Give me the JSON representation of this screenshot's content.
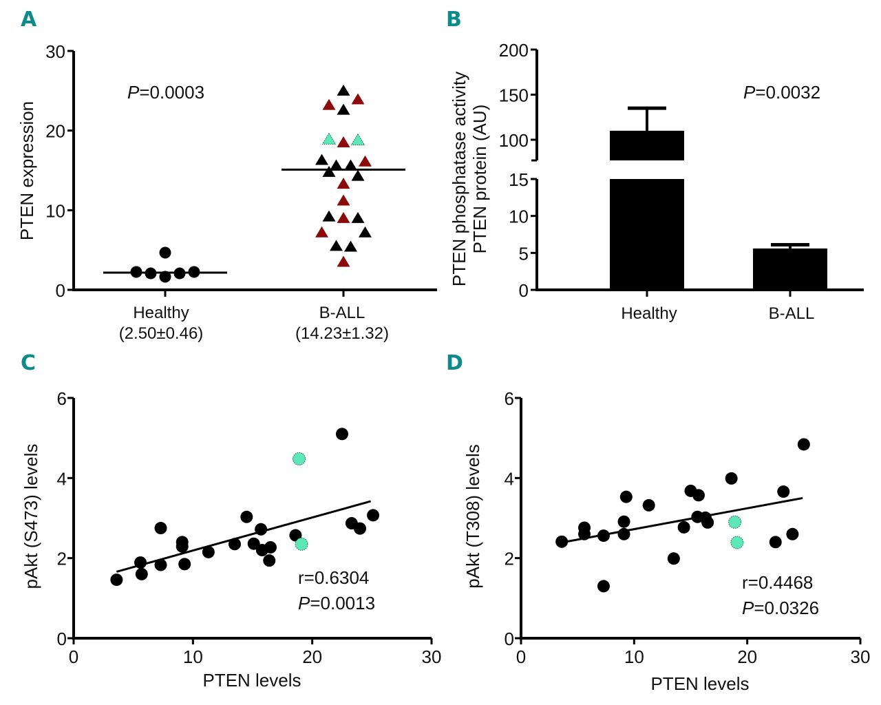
{
  "figure": {
    "panels": [
      "A",
      "B",
      "C",
      "D"
    ]
  },
  "colors": {
    "black": "#000000",
    "red": "#8b0a0a",
    "teal": "#5ee8b8",
    "label_teal": "#0e8a8a"
  },
  "chart_data": [
    {
      "panel": "A",
      "type": "scatter",
      "title": "",
      "ylabel": "PTEN expression",
      "xlabel": "",
      "ylim": [
        0,
        30
      ],
      "yticks": [
        0,
        10,
        20,
        30
      ],
      "categories": [
        "Healthy",
        "B-ALL"
      ],
      "category_sublabels": [
        "(2.50±0.46)",
        "(14.23±1.32)"
      ],
      "annotation": {
        "p_label": "P",
        "p_value": "=0.0003"
      },
      "series": [
        {
          "name": "Healthy",
          "marker": "circle",
          "median": 2.16,
          "points": [
            {
              "offset": -2,
              "y": 2.25,
              "color": "black"
            },
            {
              "offset": -1,
              "y": 2.07,
              "color": "black"
            },
            {
              "offset": 0,
              "y": 1.64,
              "color": "black"
            },
            {
              "offset": 1,
              "y": 2.07,
              "color": "black"
            },
            {
              "offset": 2,
              "y": 2.25,
              "color": "black"
            },
            {
              "offset": 0,
              "y": 4.67,
              "color": "black"
            }
          ]
        },
        {
          "name": "B-ALL",
          "marker": "triangle",
          "median": 15.1,
          "points": [
            {
              "offset": 0,
              "y": 25.0,
              "color": "black"
            },
            {
              "offset": -1,
              "y": 23.2,
              "color": "red"
            },
            {
              "offset": 1,
              "y": 23.9,
              "color": "red"
            },
            {
              "offset": 0,
              "y": 22.6,
              "color": "black"
            },
            {
              "offset": -1,
              "y": 18.9,
              "color": "teal"
            },
            {
              "offset": 0,
              "y": 18.5,
              "color": "red"
            },
            {
              "offset": 1,
              "y": 18.8,
              "color": "teal"
            },
            {
              "offset": -1.5,
              "y": 16.3,
              "color": "black"
            },
            {
              "offset": -0.5,
              "y": 15.6,
              "color": "black"
            },
            {
              "offset": 0.5,
              "y": 15.6,
              "color": "black"
            },
            {
              "offset": 1.5,
              "y": 16.1,
              "color": "red"
            },
            {
              "offset": -1,
              "y": 14.8,
              "color": "black"
            },
            {
              "offset": 1,
              "y": 14.3,
              "color": "black"
            },
            {
              "offset": 0,
              "y": 13.3,
              "color": "red"
            },
            {
              "offset": 0,
              "y": 11.2,
              "color": "red"
            },
            {
              "offset": -1,
              "y": 9.2,
              "color": "black"
            },
            {
              "offset": 0,
              "y": 9.0,
              "color": "red"
            },
            {
              "offset": 1,
              "y": 9.0,
              "color": "black"
            },
            {
              "offset": -1.5,
              "y": 7.2,
              "color": "red"
            },
            {
              "offset": 1.5,
              "y": 7.2,
              "color": "black"
            },
            {
              "offset": -0.5,
              "y": 5.5,
              "color": "black"
            },
            {
              "offset": 0.5,
              "y": 5.4,
              "color": "black"
            },
            {
              "offset": 0,
              "y": 3.5,
              "color": "red"
            }
          ]
        }
      ]
    },
    {
      "panel": "B",
      "type": "bar",
      "title": "",
      "ylabel_lines": [
        "PTEN phosphatase activity",
        "PTEN protein (AU)"
      ],
      "categories": [
        "Healthy",
        "B-ALL"
      ],
      "values": [
        110,
        5.6
      ],
      "error_upper": [
        135,
        6.1
      ],
      "axis_break": {
        "lower_range": [
          0,
          15
        ],
        "upper_range": [
          80,
          200
        ]
      },
      "yticks_lower": [
        0,
        5,
        10,
        15
      ],
      "yticks_upper": [
        100,
        150,
        200
      ],
      "annotation": {
        "p_label": "P",
        "p_value": "=0.0032"
      }
    },
    {
      "panel": "C",
      "type": "scatter",
      "title": "",
      "xlabel": "PTEN levels",
      "ylabel": "pAkt (S473) levels",
      "xlim": [
        0,
        30
      ],
      "ylim": [
        0,
        6
      ],
      "xticks": [
        0,
        10,
        20,
        30
      ],
      "yticks": [
        0,
        2,
        4,
        6
      ],
      "annotation": {
        "r_text": "r=0.6304",
        "p_label": "P",
        "p_value": "=0.0013"
      },
      "regression": {
        "x": [
          3.6,
          24.9
        ],
        "y": [
          1.66,
          3.42
        ]
      },
      "points": [
        {
          "x": 3.6,
          "y": 1.46,
          "color": "black"
        },
        {
          "x": 5.6,
          "y": 1.89,
          "color": "black"
        },
        {
          "x": 5.7,
          "y": 1.6,
          "color": "black"
        },
        {
          "x": 7.3,
          "y": 1.83,
          "color": "black"
        },
        {
          "x": 7.3,
          "y": 2.75,
          "color": "black"
        },
        {
          "x": 9.1,
          "y": 2.4,
          "color": "black"
        },
        {
          "x": 9.1,
          "y": 2.29,
          "color": "black"
        },
        {
          "x": 9.3,
          "y": 1.85,
          "color": "black"
        },
        {
          "x": 11.3,
          "y": 2.15,
          "color": "black"
        },
        {
          "x": 13.5,
          "y": 2.35,
          "color": "black"
        },
        {
          "x": 14.5,
          "y": 3.03,
          "color": "black"
        },
        {
          "x": 15.1,
          "y": 2.36,
          "color": "black"
        },
        {
          "x": 15.7,
          "y": 2.72,
          "color": "black"
        },
        {
          "x": 15.8,
          "y": 2.2,
          "color": "black"
        },
        {
          "x": 16.4,
          "y": 1.94,
          "color": "black"
        },
        {
          "x": 16.5,
          "y": 2.27,
          "color": "black"
        },
        {
          "x": 18.6,
          "y": 2.57,
          "color": "black"
        },
        {
          "x": 18.9,
          "y": 4.48,
          "color": "teal"
        },
        {
          "x": 19.1,
          "y": 2.35,
          "color": "teal"
        },
        {
          "x": 22.5,
          "y": 5.1,
          "color": "black"
        },
        {
          "x": 23.3,
          "y": 2.87,
          "color": "black"
        },
        {
          "x": 24.0,
          "y": 2.74,
          "color": "black"
        },
        {
          "x": 25.1,
          "y": 3.07,
          "color": "black"
        }
      ]
    },
    {
      "panel": "D",
      "type": "scatter",
      "title": "",
      "xlabel": "PTEN levels",
      "ylabel": "pAkt (T308) levels",
      "xlim": [
        0,
        30
      ],
      "ylim": [
        0,
        6
      ],
      "xticks": [
        0,
        10,
        20,
        30
      ],
      "yticks": [
        0,
        2,
        4,
        6
      ],
      "annotation": {
        "r_text": "r=0.4468",
        "p_label": "P",
        "p_value": "=0.0326"
      },
      "regression": {
        "x": [
          3.6,
          24.9
        ],
        "y": [
          2.39,
          3.5
        ]
      },
      "points": [
        {
          "x": 3.6,
          "y": 2.41,
          "color": "black"
        },
        {
          "x": 5.6,
          "y": 2.76,
          "color": "black"
        },
        {
          "x": 5.6,
          "y": 2.6,
          "color": "black"
        },
        {
          "x": 7.3,
          "y": 2.56,
          "color": "black"
        },
        {
          "x": 7.3,
          "y": 1.3,
          "color": "black"
        },
        {
          "x": 9.1,
          "y": 2.91,
          "color": "black"
        },
        {
          "x": 9.1,
          "y": 2.6,
          "color": "black"
        },
        {
          "x": 9.3,
          "y": 3.53,
          "color": "black"
        },
        {
          "x": 11.3,
          "y": 3.32,
          "color": "black"
        },
        {
          "x": 13.5,
          "y": 1.99,
          "color": "black"
        },
        {
          "x": 14.4,
          "y": 2.77,
          "color": "black"
        },
        {
          "x": 15.0,
          "y": 3.68,
          "color": "black"
        },
        {
          "x": 15.7,
          "y": 3.57,
          "color": "black"
        },
        {
          "x": 15.6,
          "y": 3.03,
          "color": "black"
        },
        {
          "x": 16.3,
          "y": 3.01,
          "color": "black"
        },
        {
          "x": 16.5,
          "y": 2.89,
          "color": "black"
        },
        {
          "x": 18.6,
          "y": 3.99,
          "color": "black"
        },
        {
          "x": 18.9,
          "y": 2.9,
          "color": "teal"
        },
        {
          "x": 19.1,
          "y": 2.39,
          "color": "teal"
        },
        {
          "x": 22.5,
          "y": 2.4,
          "color": "black"
        },
        {
          "x": 23.2,
          "y": 3.66,
          "color": "black"
        },
        {
          "x": 24.0,
          "y": 2.6,
          "color": "black"
        },
        {
          "x": 25.0,
          "y": 4.84,
          "color": "black"
        }
      ]
    }
  ]
}
